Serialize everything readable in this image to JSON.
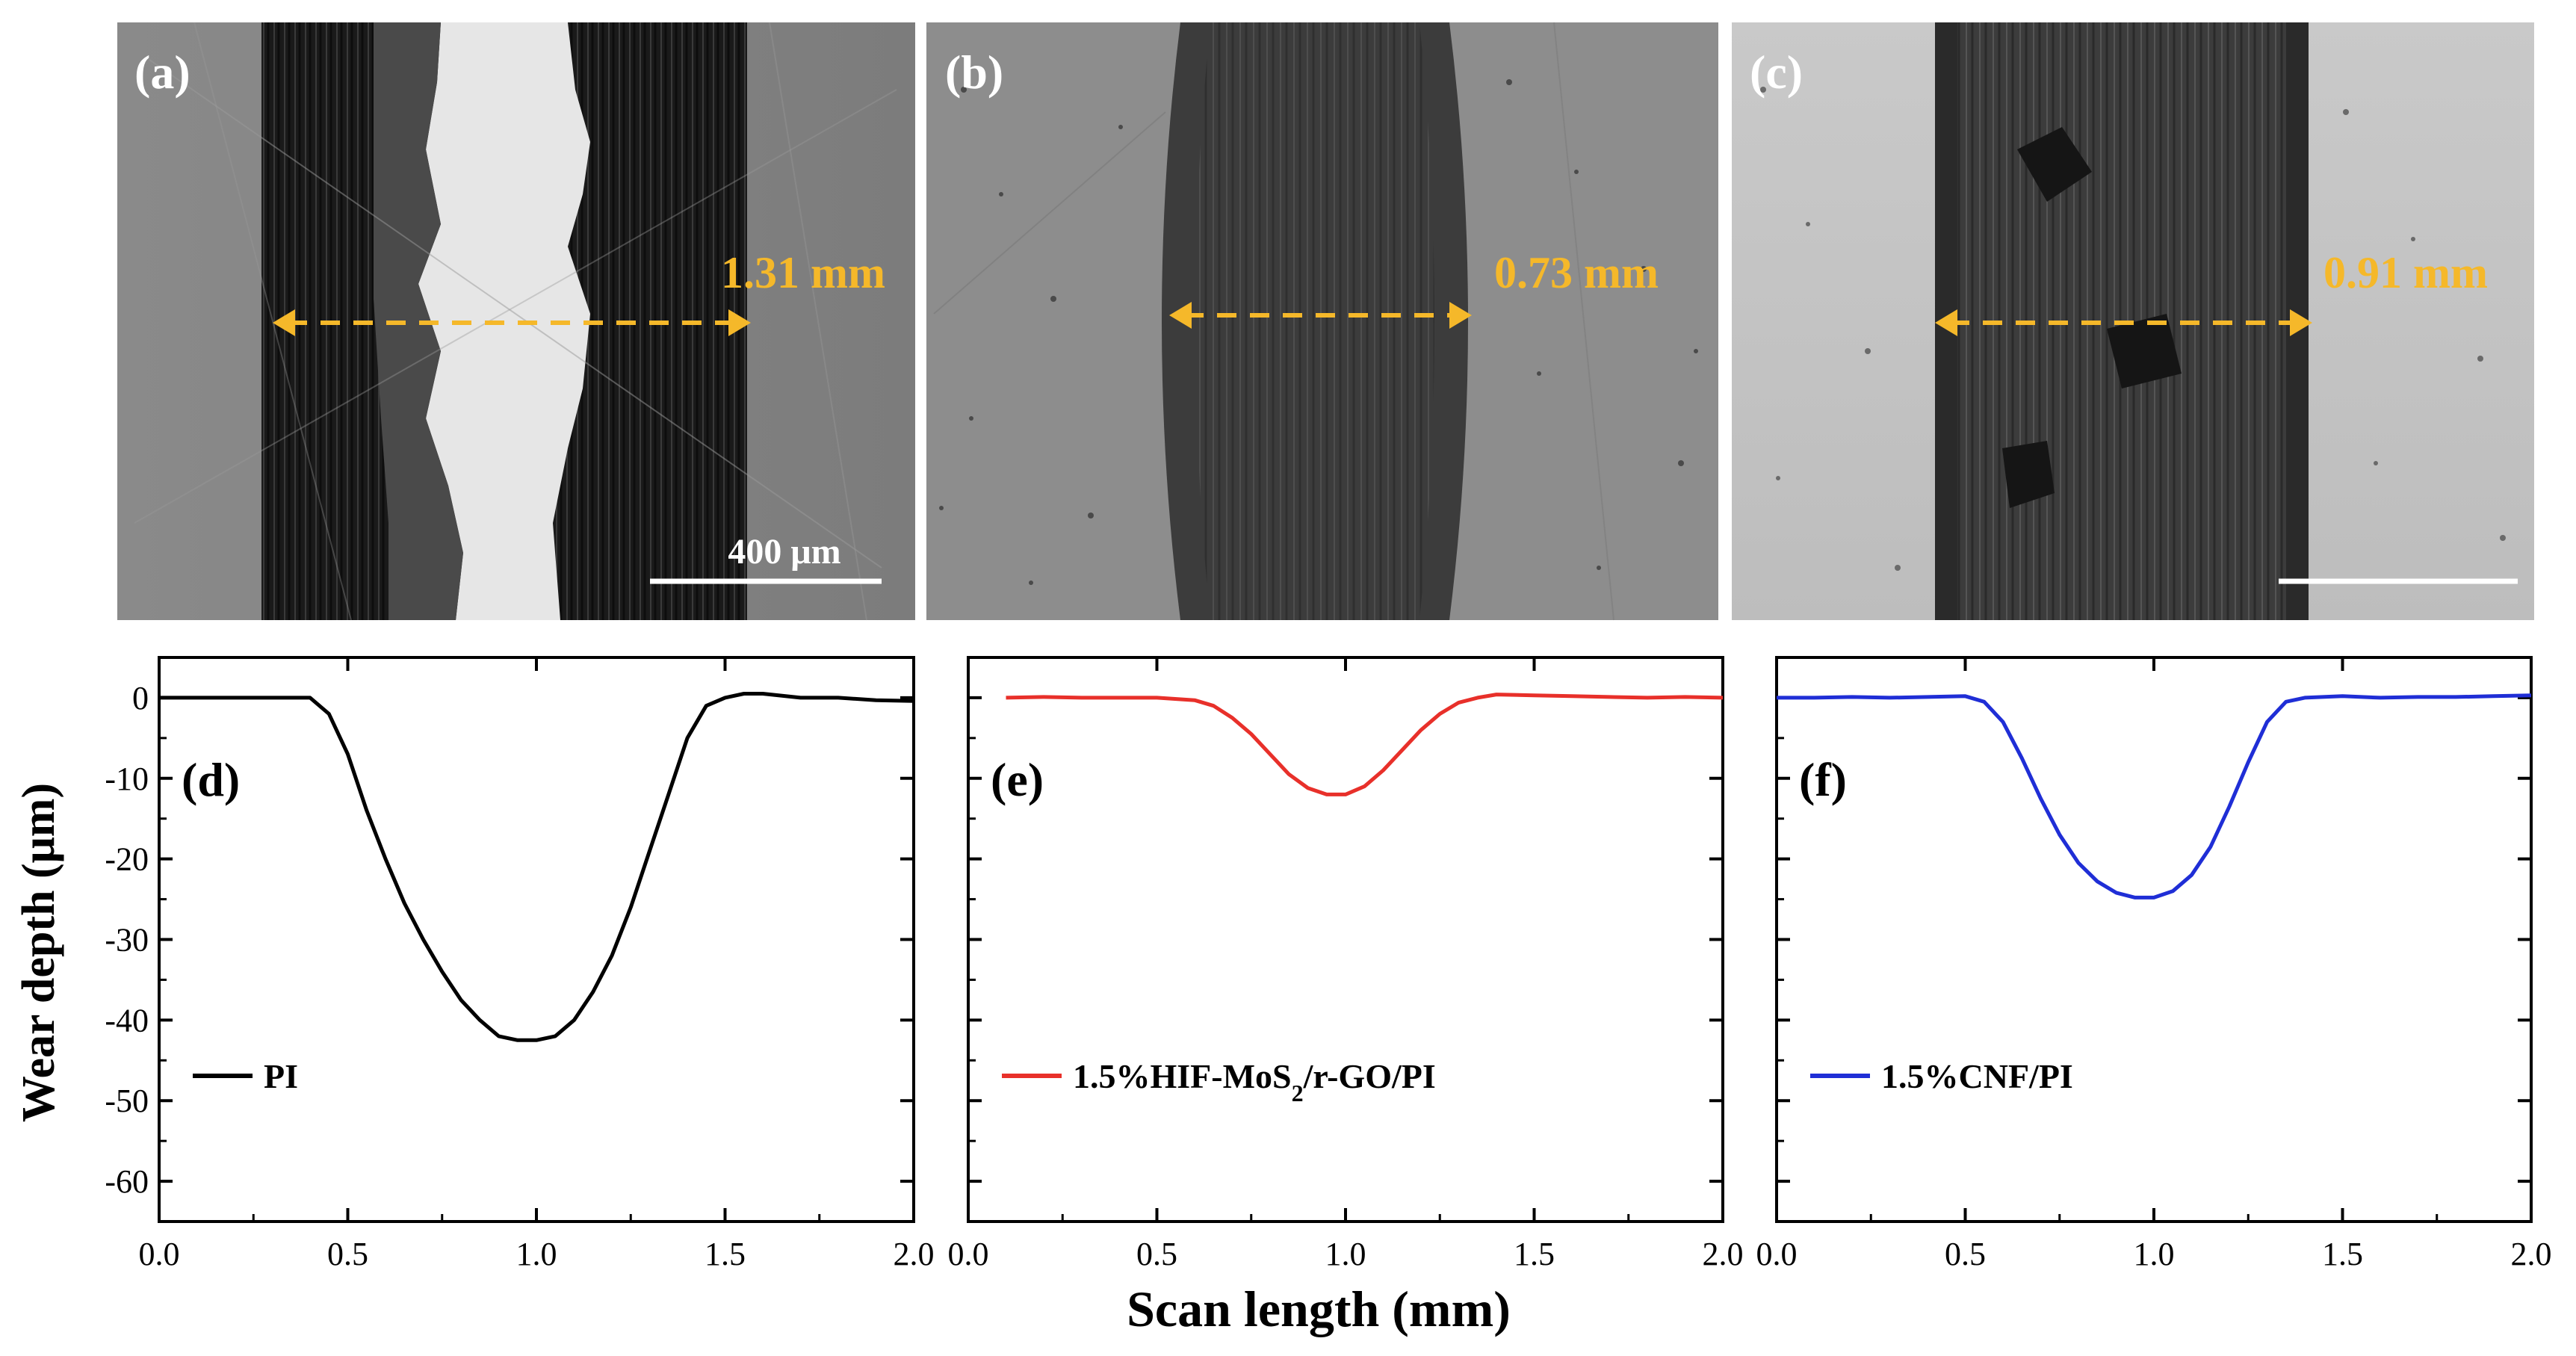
{
  "micrographs": [
    {
      "label": "(a)",
      "width_text": "1.31 mm",
      "scale_text": "400 μm"
    },
    {
      "label": "(b)",
      "width_text": "0.73 mm",
      "scale_text": ""
    },
    {
      "label": "(c)",
      "width_text": "0.91 mm",
      "scale_text": ""
    }
  ],
  "annotation_color": "#f5b82a",
  "shared_axes": {
    "ylabel": "Wear depth (μm)",
    "xlabel": "Scan length (mm)"
  },
  "chart_data": [
    {
      "type": "line",
      "panel_label": "(d)",
      "legend": "PI",
      "color": "#000000",
      "x": [
        0.0,
        0.1,
        0.2,
        0.3,
        0.4,
        0.45,
        0.5,
        0.55,
        0.6,
        0.65,
        0.7,
        0.75,
        0.8,
        0.85,
        0.9,
        0.95,
        1.0,
        1.05,
        1.1,
        1.15,
        1.2,
        1.25,
        1.3,
        1.35,
        1.4,
        1.45,
        1.5,
        1.55,
        1.6,
        1.7,
        1.8,
        1.9,
        2.0
      ],
      "y": [
        0.0,
        0.0,
        0.0,
        0.0,
        0.0,
        -2.0,
        -7.0,
        -14.0,
        -20.0,
        -25.5,
        -30.0,
        -34.0,
        -37.5,
        -40.0,
        -42.0,
        -42.5,
        -42.5,
        -42.0,
        -40.0,
        -36.5,
        -32.0,
        -26.0,
        -19.0,
        -12.0,
        -5.0,
        -1.0,
        0.0,
        0.5,
        0.5,
        0.0,
        0.0,
        -0.3,
        -0.4
      ],
      "xlim": [
        0.0,
        2.0
      ],
      "ylim": [
        -65,
        5
      ],
      "xticks": [
        "0.0",
        "0.5",
        "1.0",
        "1.5",
        "2.0"
      ],
      "yticks": [
        "0",
        "-10",
        "-20",
        "-30",
        "-40",
        "-50",
        "-60"
      ]
    },
    {
      "type": "line",
      "panel_label": "(e)",
      "legend_main": "1.5%HIF-MoS",
      "legend_sub": "2",
      "legend_tail": "/r-GO/PI",
      "color": "#e8302a",
      "x": [
        0.1,
        0.2,
        0.3,
        0.4,
        0.5,
        0.6,
        0.65,
        0.7,
        0.75,
        0.8,
        0.85,
        0.9,
        0.95,
        1.0,
        1.05,
        1.1,
        1.15,
        1.2,
        1.25,
        1.3,
        1.35,
        1.4,
        1.5,
        1.6,
        1.7,
        1.8,
        1.9,
        2.0
      ],
      "y": [
        0.0,
        0.1,
        0.0,
        0.0,
        0.0,
        -0.3,
        -1.0,
        -2.5,
        -4.5,
        -7.0,
        -9.5,
        -11.2,
        -12.0,
        -12.0,
        -11.0,
        -9.0,
        -6.5,
        -4.0,
        -2.0,
        -0.6,
        0.0,
        0.4,
        0.3,
        0.2,
        0.1,
        0.0,
        0.1,
        0.0
      ],
      "xlim": [
        0.0,
        2.0
      ],
      "ylim": [
        -65,
        5
      ],
      "xticks": [
        "0.0",
        "0.5",
        "1.0",
        "1.5",
        "2.0"
      ],
      "yticks": [
        "0",
        "-10",
        "-20",
        "-30",
        "-40",
        "-50",
        "-60"
      ]
    },
    {
      "type": "line",
      "panel_label": "(f)",
      "legend": "1.5%CNF/PI",
      "color": "#1f2ed6",
      "x": [
        0.0,
        0.1,
        0.2,
        0.3,
        0.4,
        0.5,
        0.55,
        0.6,
        0.65,
        0.7,
        0.75,
        0.8,
        0.85,
        0.9,
        0.95,
        1.0,
        1.05,
        1.1,
        1.15,
        1.2,
        1.25,
        1.3,
        1.35,
        1.4,
        1.5,
        1.6,
        1.7,
        1.8,
        1.9,
        2.0
      ],
      "y": [
        0.0,
        0.0,
        0.1,
        0.0,
        0.1,
        0.2,
        -0.5,
        -3.0,
        -7.5,
        -12.5,
        -17.0,
        -20.5,
        -22.8,
        -24.2,
        -24.8,
        -24.8,
        -24.0,
        -22.0,
        -18.5,
        -13.5,
        -8.0,
        -3.0,
        -0.5,
        0.0,
        0.2,
        0.0,
        0.1,
        0.1,
        0.2,
        0.3
      ],
      "xlim": [
        0.0,
        2.0
      ],
      "ylim": [
        -65,
        5
      ],
      "xticks": [
        "0.0",
        "0.5",
        "1.0",
        "1.5",
        "2.0"
      ],
      "yticks": [
        "0",
        "-10",
        "-20",
        "-30",
        "-40",
        "-50",
        "-60"
      ]
    }
  ]
}
